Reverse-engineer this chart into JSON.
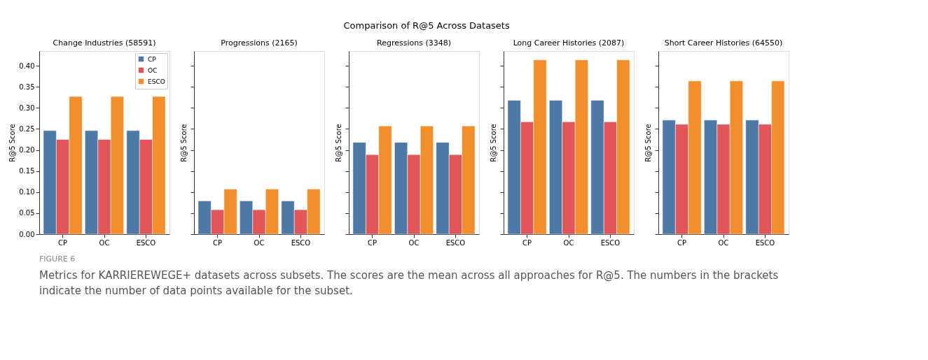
{
  "chart_data": [
    {
      "type": "bar",
      "title": "Change Industries (58591)",
      "ylabel": "R@5 Score",
      "categories": [
        "CP",
        "OC",
        "ESCO"
      ],
      "series": [
        {
          "name": "CP",
          "color": "#4e79a7",
          "values": [
            0.246,
            0.246,
            0.246
          ]
        },
        {
          "name": "OC",
          "color": "#e15759",
          "values": [
            0.225,
            0.225,
            0.225
          ]
        },
        {
          "name": "ESCO",
          "color": "#f28e2b",
          "values": [
            0.327,
            0.327,
            0.327
          ]
        }
      ],
      "ylim": [
        0,
        0.435
      ],
      "yticks": [
        {
          "value": 0,
          "label": "0.00"
        },
        {
          "value": 0.05,
          "label": "0.05"
        },
        {
          "value": 0.1,
          "label": "0.10"
        },
        {
          "value": 0.15,
          "label": "0.15"
        },
        {
          "value": 0.2,
          "label": "0.20"
        },
        {
          "value": 0.25,
          "label": "0.25"
        },
        {
          "value": 0.3,
          "label": "0.30"
        },
        {
          "value": 0.35,
          "label": "0.35"
        },
        {
          "value": 0.4,
          "label": "0.40"
        }
      ],
      "legend": "top right",
      "grid": false,
      "annotations": [
        "Comparison of R@5 Across Datasets",
        "FIGURE 6",
        "Metrics for KARRIEREWEGE+ datasets across subsets. The scores are the mean across all approaches for R@5. The numbers in the brackets indicate the number of data points available for the subset."
      ]
    },
    {
      "type": "bar",
      "title": "Progressions (2165)",
      "ylabel": "R@5 Score",
      "categories": [
        "CP",
        "OC",
        "ESCO"
      ],
      "series": [
        {
          "color": "#4e79a7",
          "values": [
            0.079,
            0.079,
            0.079
          ]
        },
        {
          "color": "#e15759",
          "values": [
            0.058,
            0.058,
            0.058
          ]
        },
        {
          "color": "#f28e2b",
          "values": [
            0.107,
            0.107,
            0.107
          ]
        }
      ],
      "ylim": [
        0,
        0.435
      ],
      "yticks": [
        {
          "value": 0,
          "label": null
        },
        {
          "value": 0.05,
          "label": null
        },
        {
          "value": 0.1,
          "label": null
        },
        {
          "value": 0.15,
          "label": null
        },
        {
          "value": 0.2,
          "label": null
        },
        {
          "value": 0.25,
          "label": null
        },
        {
          "value": 0.3,
          "label": null
        },
        {
          "value": 0.35,
          "label": null
        },
        {
          "value": 0.4,
          "label": null
        }
      ],
      "tick_labels": "x",
      "grid": false
    },
    {
      "type": "bar",
      "title": "Regressions (3348)",
      "ylabel": "R@5 Score",
      "categories": [
        "CP",
        "OC",
        "ESCO"
      ],
      "series": [
        {
          "color": "#4e79a7",
          "values": [
            0.218,
            0.218,
            0.218
          ]
        },
        {
          "color": "#e15759",
          "values": [
            0.189,
            0.189,
            0.189
          ]
        },
        {
          "color": "#f28e2b",
          "values": [
            0.257,
            0.257,
            0.257
          ]
        }
      ],
      "ylim": [
        0,
        0.435
      ],
      "yticks": [
        {
          "value": 0,
          "label": null
        },
        {
          "value": 0.05,
          "label": null
        },
        {
          "value": 0.1,
          "label": null
        },
        {
          "value": 0.15,
          "label": null
        },
        {
          "value": 0.2,
          "label": null
        },
        {
          "value": 0.25,
          "label": null
        },
        {
          "value": 0.3,
          "label": null
        },
        {
          "value": 0.35,
          "label": null
        },
        {
          "value": 0.4,
          "label": null
        }
      ],
      "tick_labels": "x",
      "grid": false
    },
    {
      "type": "bar",
      "title": "Long Career Histories (2087)",
      "ylabel": "R@5 Score",
      "categories": [
        "CP",
        "OC",
        "ESCO"
      ],
      "series": [
        {
          "color": "#4e79a7",
          "values": [
            0.318,
            0.318,
            0.318
          ]
        },
        {
          "color": "#e15759",
          "values": [
            0.267,
            0.267,
            0.267
          ]
        },
        {
          "color": "#f28e2b",
          "values": [
            0.414,
            0.414,
            0.414
          ]
        }
      ],
      "ylim": [
        0,
        0.435
      ],
      "yticks": [
        {
          "value": 0,
          "label": null
        },
        {
          "value": 0.05,
          "label": null
        },
        {
          "value": 0.1,
          "label": null
        },
        {
          "value": 0.15,
          "label": null
        },
        {
          "value": 0.2,
          "label": null
        },
        {
          "value": 0.25,
          "label": null
        },
        {
          "value": 0.3,
          "label": null
        },
        {
          "value": 0.35,
          "label": null
        },
        {
          "value": 0.4,
          "label": null
        }
      ],
      "tick_labels": "x",
      "grid": false
    },
    {
      "type": "bar",
      "title": "Short Career Histories (64550)",
      "ylabel": "R@5 Score",
      "categories": [
        "CP",
        "OC",
        "ESCO"
      ],
      "series": [
        {
          "color": "#4e79a7",
          "values": [
            0.271,
            0.271,
            0.271
          ]
        },
        {
          "color": "#e15759",
          "values": [
            0.261,
            0.261,
            0.261
          ]
        },
        {
          "color": "#f28e2b",
          "values": [
            0.364,
            0.364,
            0.364
          ]
        }
      ],
      "ylim": [
        0,
        0.435
      ],
      "yticks": [
        {
          "value": 0,
          "label": null
        },
        {
          "value": 0.05,
          "label": null
        },
        {
          "value": 0.1,
          "label": null
        },
        {
          "value": 0.15,
          "label": null
        },
        {
          "value": 0.2,
          "label": null
        },
        {
          "value": 0.25,
          "label": null
        },
        {
          "value": 0.3,
          "label": null
        },
        {
          "value": 0.35,
          "label": null
        },
        {
          "value": 0.4,
          "label": null
        }
      ],
      "tick_labels": "x",
      "grid": false
    }
  ]
}
